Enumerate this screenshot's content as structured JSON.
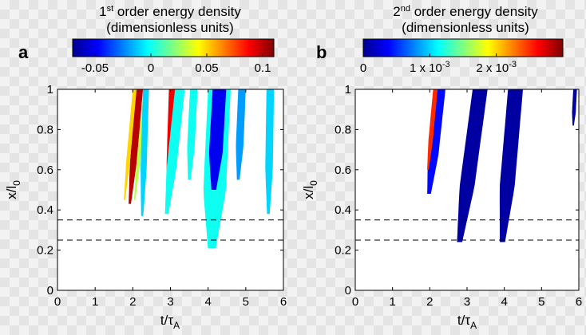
{
  "chart_data": [
    {
      "type": "heatmap",
      "panel_label": "a",
      "colorbar_title_1": "1st order energy density",
      "colorbar_title_2": "(dimensionless units)",
      "colorbar_range": [
        -0.07,
        0.11
      ],
      "colorbar_ticks": [
        -0.05,
        0,
        0.05,
        0.1
      ],
      "colorbar_tick_labels": [
        "-0.05",
        "0",
        "0.05",
        "0.1"
      ],
      "xlabel": "t/τA",
      "ylabel": "x/l0",
      "xlim": [
        0,
        6
      ],
      "ylim": [
        0,
        1
      ],
      "x_ticks": [
        0,
        1,
        2,
        3,
        4,
        5,
        6
      ],
      "x_tick_labels": [
        "0",
        "1",
        "2",
        "3",
        "4",
        "5",
        "6"
      ],
      "y_ticks": [
        0,
        0.2,
        0.4,
        0.6,
        0.8,
        1
      ],
      "y_tick_labels": [
        "0",
        "0.2",
        "0.4",
        "0.6",
        "0.8",
        "1"
      ],
      "dashed_lines_y": [
        0.35,
        0.25
      ],
      "regions": [
        {
          "x_center": [
            1.92,
            2.18
          ],
          "half_width": 0.09,
          "y_range": [
            0.43,
            1.0
          ],
          "value": 0.1
        },
        {
          "x_center": [
            1.78,
            2.05
          ],
          "half_width": 0.05,
          "y_range": [
            0.45,
            1.0
          ],
          "value": 0.05
        },
        {
          "x_center": [
            2.05,
            2.34
          ],
          "half_width": 0.05,
          "y_range": [
            0.45,
            1.0
          ],
          "value": 0.03
        },
        {
          "x_center": [
            2.25,
            2.35
          ],
          "half_width": 0.08,
          "y_range": [
            0.37,
            1.0
          ],
          "value": -0.01
        },
        {
          "x_center": [
            2.95,
            3.05
          ],
          "half_width": 0.09,
          "y_range": [
            0.42,
            1.0
          ],
          "value": 0.09
        },
        {
          "x_center": [
            2.9,
            3.25
          ],
          "half_width": 0.13,
          "y_range": [
            0.38,
            1.0
          ],
          "value": 0.0
        },
        {
          "x_center": [
            3.5,
            3.62
          ],
          "half_width": 0.1,
          "y_range": [
            0.55,
            1.0
          ],
          "value": 0.0
        },
        {
          "x_center": [
            4.1,
            4.3
          ],
          "half_width": 0.3,
          "y_range": [
            0.21,
            1.0
          ],
          "value": 0.0
        },
        {
          "x_center": [
            4.15,
            4.3
          ],
          "half_width": 0.18,
          "y_range": [
            0.5,
            1.0
          ],
          "value": -0.05
        },
        {
          "x_center": [
            4.8,
            4.9
          ],
          "half_width": 0.1,
          "y_range": [
            0.55,
            1.0
          ],
          "value": -0.02
        },
        {
          "x_center": [
            5.6,
            5.65
          ],
          "half_width": 0.1,
          "y_range": [
            0.38,
            1.0
          ],
          "value": -0.01
        }
      ]
    },
    {
      "type": "heatmap",
      "panel_label": "b",
      "colorbar_title_1": "2nd order energy density",
      "colorbar_title_2": "(dimensionless units)",
      "colorbar_range": [
        0,
        0.003
      ],
      "colorbar_ticks": [
        0,
        0.001,
        0.002
      ],
      "colorbar_tick_labels": [
        "0",
        "1 x 10-3",
        "2 x 10-3"
      ],
      "xlabel": "t/τA",
      "ylabel": "x/l0",
      "xlim": [
        0,
        6
      ],
      "ylim": [
        0,
        1
      ],
      "x_ticks": [
        0,
        1,
        2,
        3,
        4,
        5,
        6
      ],
      "x_tick_labels": [
        "0",
        "1",
        "2",
        "3",
        "4",
        "5",
        "6"
      ],
      "y_ticks": [
        0,
        0.2,
        0.4,
        0.6,
        0.8,
        1
      ],
      "y_tick_labels": [
        "0",
        "0.2",
        "0.4",
        "0.6",
        "0.8",
        "1"
      ],
      "dashed_lines_y": [
        0.35,
        0.25
      ],
      "regions": [
        {
          "x_center": [
            1.98,
            2.28
          ],
          "half_width": 0.14,
          "y_range": [
            0.48,
            1.0
          ],
          "value": 0.0004
        },
        {
          "x_center": [
            1.95,
            2.15
          ],
          "half_width": 0.06,
          "y_range": [
            0.6,
            1.0
          ],
          "value": 0.0025
        },
        {
          "x_center": [
            2.8,
            3.35
          ],
          "half_width": 0.2,
          "y_range": [
            0.24,
            1.0
          ],
          "value": 0.0001
        },
        {
          "x_center": [
            3.95,
            4.3
          ],
          "half_width": 0.2,
          "y_range": [
            0.24,
            1.0
          ],
          "value": 0.0001
        },
        {
          "x_center": [
            5.85,
            5.9
          ],
          "half_width": 0.05,
          "y_range": [
            0.82,
            1.0
          ],
          "value": 0.0001
        }
      ]
    }
  ]
}
